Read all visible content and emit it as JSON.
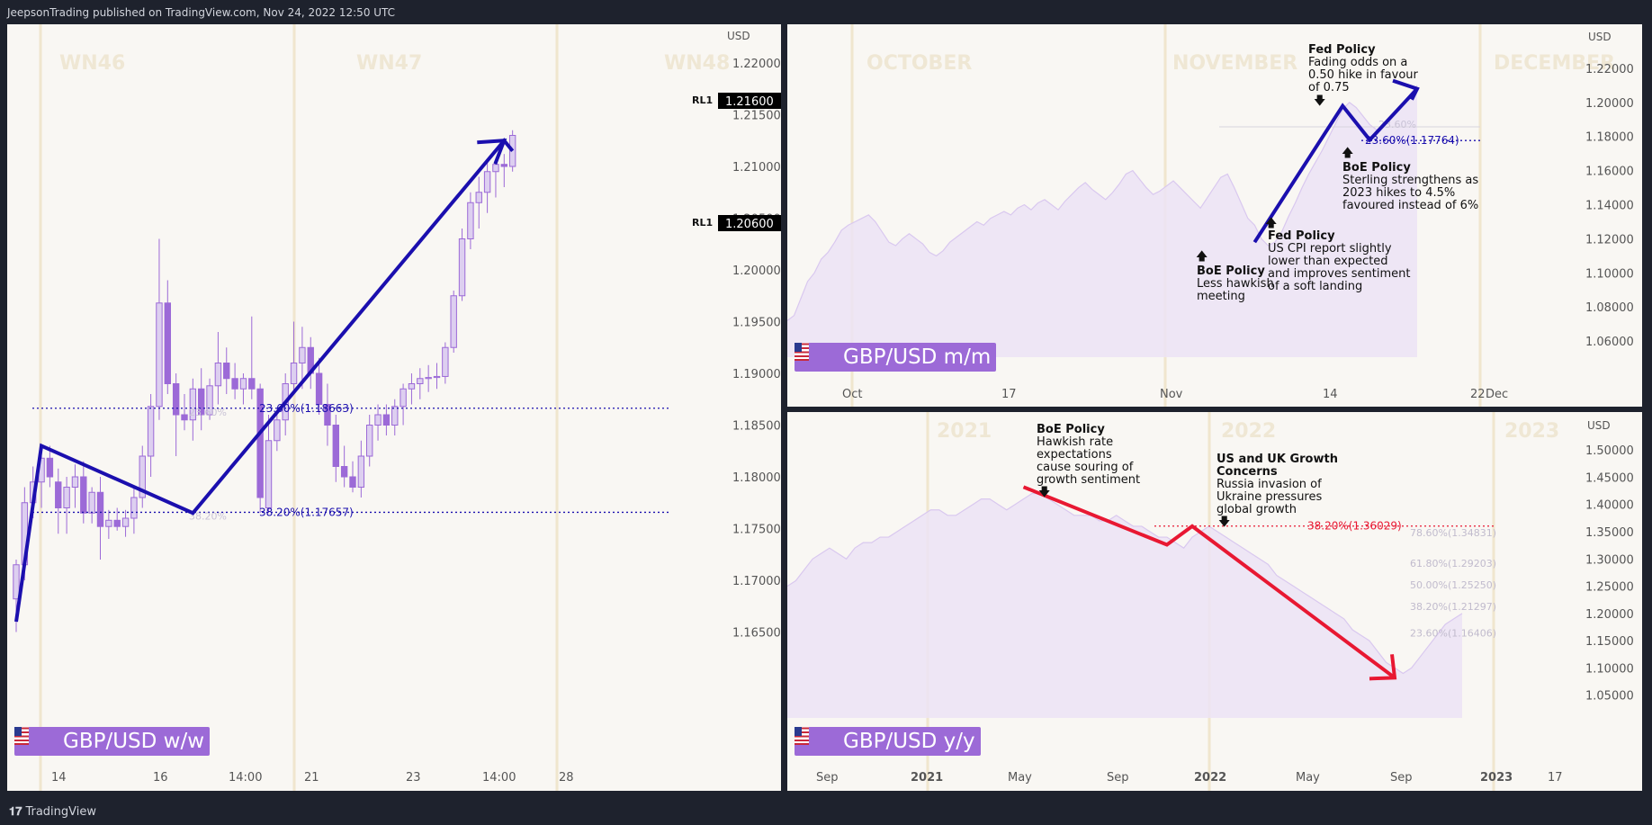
{
  "header": {
    "text": "JeepsonTrading published on TradingView.com, Nov 24, 2022 12:50 UTC"
  },
  "footer": {
    "brand": "TradingView"
  },
  "colors": {
    "candle": "#9c6ad7",
    "candle_body_up": "#ddcff0",
    "arrow_blue": "#1b0fae",
    "arrow_red": "#e81832",
    "label_bg": "#9c6ad7"
  },
  "panels": {
    "weekly": {
      "tag": "GBP/USD w/w",
      "currency": "USD",
      "watermarks": [
        "WN46",
        "WN47",
        "WN48"
      ],
      "x_ticks": [
        "14",
        "16",
        "14:00",
        "21",
        "23",
        "14:00",
        "28"
      ],
      "y_ticks": [
        "1.22000",
        "1.21500",
        "1.21000",
        "1.20500",
        "1.20000",
        "1.19500",
        "1.19000",
        "1.18500",
        "1.18000",
        "1.17500",
        "1.17000",
        "1.16500"
      ],
      "rl_prefix": "RL1",
      "rl_values": [
        "1.21600",
        "1.20600"
      ],
      "fib": [
        {
          "label": "23.60%(1.18663)",
          "faint": "23.60%"
        },
        {
          "label": "38.20%(1.17657)",
          "faint": "38.20%"
        }
      ]
    },
    "monthly": {
      "tag": "GBP/USD m/m",
      "currency": "USD",
      "watermarks": [
        "OCTOBER",
        "NOVEMBER",
        "DECEMBER"
      ],
      "x_ticks": [
        "Oct",
        "17",
        "Nov",
        "14",
        "22",
        "Dec"
      ],
      "y_ticks": [
        "1.22000",
        "1.20000",
        "1.18000",
        "1.16000",
        "1.14000",
        "1.12000",
        "1.10000",
        "1.08000",
        "1.06000"
      ],
      "fib": {
        "label": "23.60%(1.17764)",
        "faint": "23.60%"
      },
      "annotations": [
        {
          "title": "Fed Policy",
          "lines": [
            "Fading odds on a",
            "0.50 hike in favour",
            "of 0.75"
          ]
        },
        {
          "title": "BoE Policy",
          "lines": [
            "Sterling strengthens as",
            "2023 hikes to 4.5%",
            "favoured instead of 6%"
          ]
        },
        {
          "title": "Fed Policy",
          "lines": [
            "US CPI report slightly",
            "lower than expected",
            "and improves sentiment",
            "of a soft landing"
          ]
        },
        {
          "title": "BoE Policy",
          "lines": [
            "Less hawkish",
            "meeting"
          ]
        }
      ]
    },
    "yearly": {
      "tag": "GBP/USD y/y",
      "currency": "USD",
      "watermarks": [
        "2021",
        "2022",
        "2023"
      ],
      "x_ticks": [
        "Sep",
        "2021",
        "May",
        "Sep",
        "2022",
        "May",
        "Sep",
        "2023",
        "17"
      ],
      "y_ticks": [
        "1.50000",
        "1.45000",
        "1.40000",
        "1.35000",
        "1.30000",
        "1.25000",
        "1.20000",
        "1.15000",
        "1.10000",
        "1.05000"
      ],
      "fib_main": "38.20%(1.36029)",
      "fib_levels": [
        "78.60%(1.34831)",
        "61.80%(1.29203)",
        "50.00%(1.25250)",
        "38.20%(1.21297)",
        "23.60%(1.16406)"
      ],
      "annotations": [
        {
          "title": "BoE Policy",
          "lines": [
            "Hawkish rate",
            "expectations",
            "cause souring of",
            "growth sentiment"
          ]
        },
        {
          "title": "US and UK Growth",
          "title2": "Concerns",
          "lines": [
            "Russia invasion of",
            "Ukraine pressures",
            "global growth"
          ]
        }
      ]
    }
  },
  "chart_data": [
    {
      "type": "candlestick",
      "title": "GBP/USD w/w",
      "ylim": [
        1.162,
        1.222
      ],
      "candles": [
        {
          "o": 1.1682,
          "h": 1.172,
          "l": 1.165,
          "c": 1.1715
        },
        {
          "o": 1.1715,
          "h": 1.179,
          "l": 1.17,
          "c": 1.1775
        },
        {
          "o": 1.1775,
          "h": 1.181,
          "l": 1.176,
          "c": 1.1795
        },
        {
          "o": 1.1795,
          "h": 1.1828,
          "l": 1.177,
          "c": 1.1818
        },
        {
          "o": 1.1818,
          "h": 1.183,
          "l": 1.179,
          "c": 1.18
        },
        {
          "o": 1.1795,
          "h": 1.1808,
          "l": 1.1745,
          "c": 1.177
        },
        {
          "o": 1.177,
          "h": 1.18,
          "l": 1.1745,
          "c": 1.179
        },
        {
          "o": 1.179,
          "h": 1.1812,
          "l": 1.177,
          "c": 1.18
        },
        {
          "o": 1.18,
          "h": 1.1815,
          "l": 1.1755,
          "c": 1.1765
        },
        {
          "o": 1.1765,
          "h": 1.179,
          "l": 1.1755,
          "c": 1.1785
        },
        {
          "o": 1.1785,
          "h": 1.18,
          "l": 1.172,
          "c": 1.1752
        },
        {
          "o": 1.1752,
          "h": 1.1768,
          "l": 1.174,
          "c": 1.1758
        },
        {
          "o": 1.1758,
          "h": 1.177,
          "l": 1.1748,
          "c": 1.1752
        },
        {
          "o": 1.1752,
          "h": 1.1768,
          "l": 1.1742,
          "c": 1.176
        },
        {
          "o": 1.176,
          "h": 1.179,
          "l": 1.1745,
          "c": 1.178
        },
        {
          "o": 1.178,
          "h": 1.183,
          "l": 1.177,
          "c": 1.182
        },
        {
          "o": 1.182,
          "h": 1.188,
          "l": 1.18,
          "c": 1.1868
        },
        {
          "o": 1.1868,
          "h": 1.203,
          "l": 1.1855,
          "c": 1.1968
        },
        {
          "o": 1.1968,
          "h": 1.199,
          "l": 1.188,
          "c": 1.189
        },
        {
          "o": 1.189,
          "h": 1.19,
          "l": 1.182,
          "c": 1.186
        },
        {
          "o": 1.186,
          "h": 1.188,
          "l": 1.1845,
          "c": 1.1855
        },
        {
          "o": 1.1855,
          "h": 1.1895,
          "l": 1.1835,
          "c": 1.1885
        },
        {
          "o": 1.1885,
          "h": 1.1905,
          "l": 1.1845,
          "c": 1.186
        },
        {
          "o": 1.186,
          "h": 1.1895,
          "l": 1.1855,
          "c": 1.1888
        },
        {
          "o": 1.1888,
          "h": 1.194,
          "l": 1.187,
          "c": 1.191
        },
        {
          "o": 1.191,
          "h": 1.1925,
          "l": 1.188,
          "c": 1.1895
        },
        {
          "o": 1.1895,
          "h": 1.191,
          "l": 1.1875,
          "c": 1.1885
        },
        {
          "o": 1.1885,
          "h": 1.19,
          "l": 1.187,
          "c": 1.1895
        },
        {
          "o": 1.1895,
          "h": 1.1955,
          "l": 1.1875,
          "c": 1.1885
        },
        {
          "o": 1.1885,
          "h": 1.189,
          "l": 1.1765,
          "c": 1.178
        },
        {
          "o": 1.177,
          "h": 1.186,
          "l": 1.1765,
          "c": 1.1835
        },
        {
          "o": 1.1835,
          "h": 1.1865,
          "l": 1.1825,
          "c": 1.1855
        },
        {
          "o": 1.1855,
          "h": 1.19,
          "l": 1.184,
          "c": 1.189
        },
        {
          "o": 1.189,
          "h": 1.195,
          "l": 1.188,
          "c": 1.191
        },
        {
          "o": 1.191,
          "h": 1.1945,
          "l": 1.1885,
          "c": 1.1925
        },
        {
          "o": 1.1925,
          "h": 1.1935,
          "l": 1.1885,
          "c": 1.19
        },
        {
          "o": 1.19,
          "h": 1.1915,
          "l": 1.186,
          "c": 1.187
        },
        {
          "o": 1.187,
          "h": 1.189,
          "l": 1.183,
          "c": 1.185
        },
        {
          "o": 1.185,
          "h": 1.186,
          "l": 1.1795,
          "c": 1.181
        },
        {
          "o": 1.181,
          "h": 1.183,
          "l": 1.179,
          "c": 1.18
        },
        {
          "o": 1.18,
          "h": 1.1815,
          "l": 1.1785,
          "c": 1.179
        },
        {
          "o": 1.179,
          "h": 1.1835,
          "l": 1.178,
          "c": 1.182
        },
        {
          "o": 1.182,
          "h": 1.186,
          "l": 1.181,
          "c": 1.185
        },
        {
          "o": 1.185,
          "h": 1.187,
          "l": 1.1835,
          "c": 1.186
        },
        {
          "o": 1.186,
          "h": 1.187,
          "l": 1.184,
          "c": 1.185
        },
        {
          "o": 1.185,
          "h": 1.1875,
          "l": 1.184,
          "c": 1.1868
        },
        {
          "o": 1.1868,
          "h": 1.189,
          "l": 1.185,
          "c": 1.1885
        },
        {
          "o": 1.1885,
          "h": 1.19,
          "l": 1.187,
          "c": 1.189
        },
        {
          "o": 1.189,
          "h": 1.1905,
          "l": 1.1875,
          "c": 1.1895
        },
        {
          "o": 1.1895,
          "h": 1.1908,
          "l": 1.1882,
          "c": 1.1896
        },
        {
          "o": 1.1896,
          "h": 1.191,
          "l": 1.1885,
          "c": 1.1897
        },
        {
          "o": 1.1897,
          "h": 1.193,
          "l": 1.189,
          "c": 1.1925
        },
        {
          "o": 1.1925,
          "h": 1.198,
          "l": 1.192,
          "c": 1.1975
        },
        {
          "o": 1.1975,
          "h": 1.204,
          "l": 1.197,
          "c": 1.203
        },
        {
          "o": 1.203,
          "h": 1.2075,
          "l": 1.202,
          "c": 1.2065
        },
        {
          "o": 1.2065,
          "h": 1.209,
          "l": 1.204,
          "c": 1.2075
        },
        {
          "o": 1.2075,
          "h": 1.2105,
          "l": 1.2055,
          "c": 1.2095
        },
        {
          "o": 1.2095,
          "h": 1.2108,
          "l": 1.207,
          "c": 1.2102
        },
        {
          "o": 1.2102,
          "h": 1.2112,
          "l": 1.208,
          "c": 1.21
        },
        {
          "o": 1.21,
          "h": 1.2135,
          "l": 1.2095,
          "c": 1.213
        }
      ],
      "arrow": [
        [
          1.166,
          0
        ],
        [
          1.183,
          3
        ],
        [
          1.1765,
          21
        ],
        [
          1.2125,
          58
        ],
        [
          1.2115,
          59
        ]
      ]
    },
    {
      "type": "area",
      "title": "GBP/USD m/m",
      "ylim": [
        1.04,
        1.23
      ],
      "values": [
        1.072,
        1.075,
        1.085,
        1.095,
        1.1,
        1.108,
        1.112,
        1.118,
        1.125,
        1.128,
        1.13,
        1.132,
        1.134,
        1.13,
        1.124,
        1.118,
        1.116,
        1.12,
        1.123,
        1.12,
        1.117,
        1.112,
        1.11,
        1.113,
        1.118,
        1.121,
        1.124,
        1.127,
        1.13,
        1.128,
        1.132,
        1.134,
        1.136,
        1.134,
        1.138,
        1.14,
        1.137,
        1.141,
        1.143,
        1.14,
        1.137,
        1.142,
        1.146,
        1.15,
        1.153,
        1.149,
        1.146,
        1.143,
        1.147,
        1.152,
        1.158,
        1.16,
        1.155,
        1.15,
        1.146,
        1.148,
        1.151,
        1.154,
        1.15,
        1.146,
        1.142,
        1.138,
        1.144,
        1.15,
        1.156,
        1.158,
        1.15,
        1.141,
        1.132,
        1.128,
        1.12,
        1.116,
        1.118,
        1.124,
        1.133,
        1.141,
        1.15,
        1.158,
        1.165,
        1.172,
        1.18,
        1.188,
        1.196,
        1.2,
        1.197,
        1.192,
        1.187,
        1.184,
        1.186,
        1.19,
        1.195,
        1.2,
        1.205,
        1.21
      ],
      "arrow": [
        [
          1.118,
          69
        ],
        [
          1.198,
          82
        ],
        [
          1.178,
          86
        ],
        [
          1.208,
          93
        ]
      ]
    },
    {
      "type": "area",
      "title": "GBP/USD y/y",
      "ylim": [
        1.0,
        1.52
      ],
      "values": [
        1.25,
        1.26,
        1.28,
        1.3,
        1.31,
        1.32,
        1.31,
        1.3,
        1.32,
        1.33,
        1.33,
        1.34,
        1.34,
        1.35,
        1.36,
        1.37,
        1.38,
        1.39,
        1.39,
        1.38,
        1.38,
        1.39,
        1.4,
        1.41,
        1.41,
        1.4,
        1.39,
        1.4,
        1.41,
        1.42,
        1.42,
        1.41,
        1.4,
        1.39,
        1.38,
        1.38,
        1.38,
        1.37,
        1.37,
        1.38,
        1.37,
        1.36,
        1.36,
        1.35,
        1.34,
        1.34,
        1.33,
        1.32,
        1.34,
        1.35,
        1.36,
        1.35,
        1.34,
        1.33,
        1.32,
        1.31,
        1.3,
        1.29,
        1.27,
        1.26,
        1.25,
        1.24,
        1.23,
        1.22,
        1.21,
        1.2,
        1.19,
        1.17,
        1.16,
        1.15,
        1.13,
        1.11,
        1.1,
        1.09,
        1.1,
        1.12,
        1.14,
        1.16,
        1.18,
        1.19,
        1.2
      ],
      "arrow": [
        [
          1.432,
          28
        ],
        [
          1.326,
          45
        ],
        [
          1.36,
          48
        ],
        [
          1.082,
          72
        ]
      ]
    }
  ]
}
